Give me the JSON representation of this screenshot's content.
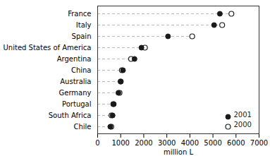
{
  "chart_data": {
    "type": "dot",
    "xlabel": "million L",
    "categories": [
      "France",
      "Italy",
      "Spain",
      "United States of America",
      "Argentina",
      "China",
      "Australia",
      "Germany",
      "Portugal",
      "South Africa",
      "Chile"
    ],
    "series": [
      {
        "name": "2001",
        "color": "#1a1a1a",
        "marker": "circle",
        "values": [
          5300,
          5050,
          3050,
          1900,
          1600,
          1100,
          1000,
          900,
          700,
          650,
          550
        ]
      },
      {
        "name": "2000",
        "color": "#1a1a1a",
        "marker": "circle_open",
        "values": [
          5800,
          5400,
          4100,
          2050,
          1450,
          1050,
          1000,
          950,
          680,
          600,
          590
        ]
      }
    ],
    "xlim": [
      0,
      7000
    ],
    "xticks": [
      0,
      1000,
      2000,
      3000,
      4000,
      5000,
      6000,
      7000
    ],
    "line_style": "dashed",
    "legend": "lower right"
  }
}
